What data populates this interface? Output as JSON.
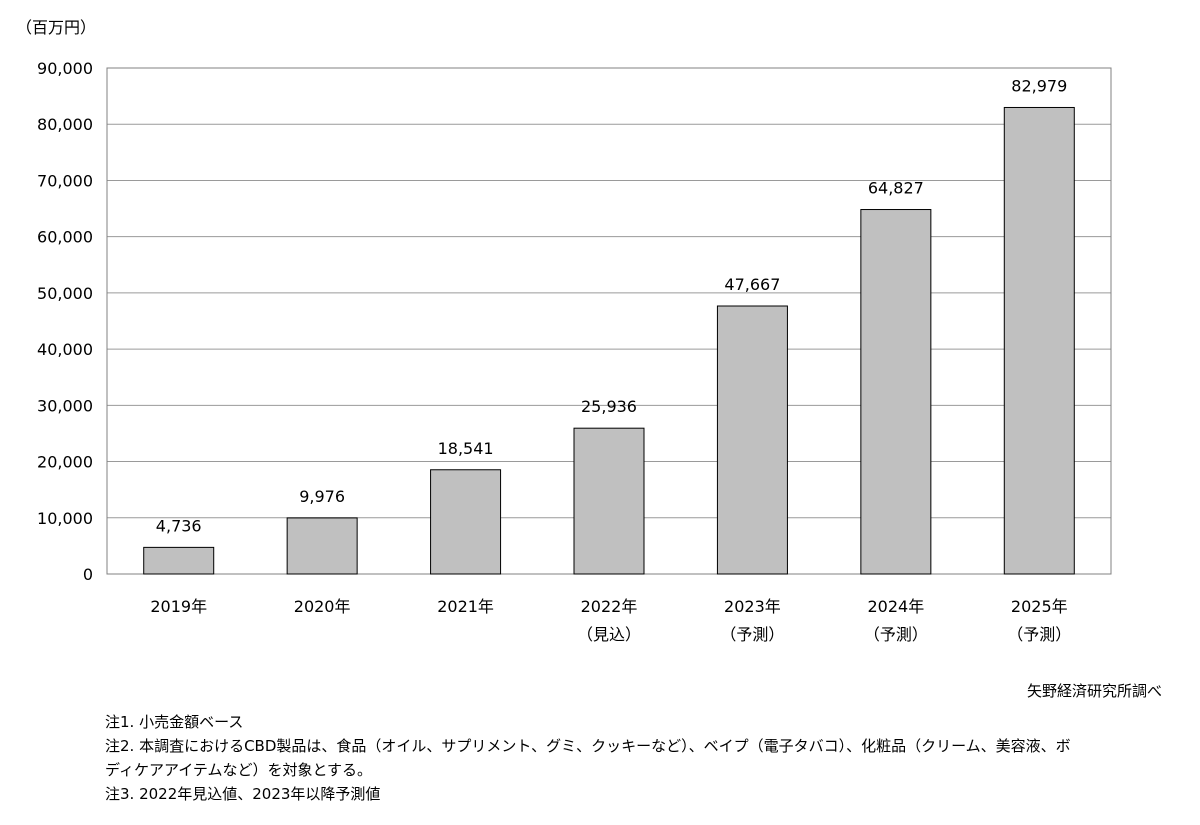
{
  "unit_label": "（百万円）",
  "source": "矢野経済研究所調べ",
  "notes": [
    "注1. 小売金額ベース",
    "注2. 本調査におけるCBD製品は、食品（オイル、サプリメント、グミ、クッキーなど）、ベイプ（電子タバコ）、化粧品（クリーム、美容液、ボ",
    "ディケアアイテムなど）を対象とする。",
    "注3. 2022年見込値、2023年以降予測値"
  ],
  "chart_data": {
    "type": "bar",
    "title": "",
    "xlabel": "",
    "ylabel": "（百万円）",
    "ylim": [
      0,
      90000
    ],
    "yticks": [
      "0",
      "10,000",
      "20,000",
      "30,000",
      "40,000",
      "50,000",
      "60,000",
      "70,000",
      "80,000",
      "90,000"
    ],
    "grid": true,
    "categories": [
      "2019年",
      "2020年",
      "2021年",
      "2022年",
      "2023年",
      "2024年",
      "2025年"
    ],
    "category_sublabels": [
      "",
      "",
      "",
      "（見込）",
      "（予測）",
      "（予測）",
      "（予測）"
    ],
    "values": [
      4736,
      9976,
      18541,
      25936,
      47667,
      64827,
      82979
    ],
    "data_labels": [
      "4,736",
      "9,976",
      "18,541",
      "25,936",
      "47,667",
      "64,827",
      "82,979"
    ],
    "bar_color": "#c0c0c0"
  }
}
